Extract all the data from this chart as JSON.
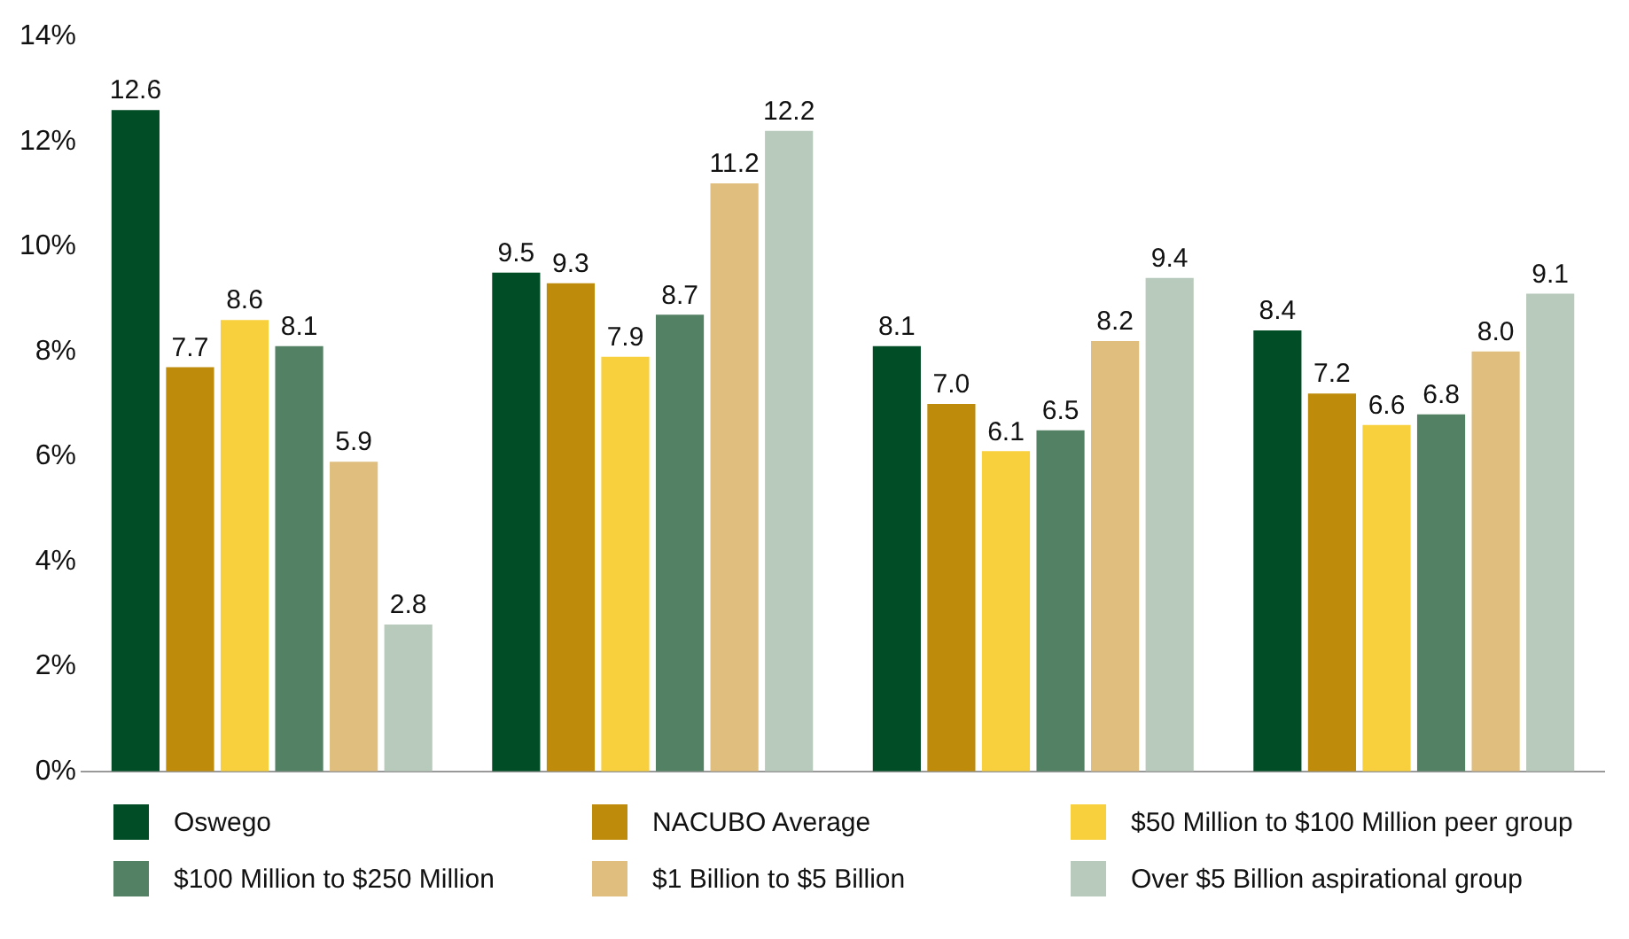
{
  "chart_data": {
    "type": "bar",
    "categories": [
      null,
      null,
      null,
      null
    ],
    "series": [
      {
        "name": "Oswego",
        "color": "#004d26",
        "values": [
          12.6,
          9.5,
          8.1,
          8.4
        ],
        "value_labels": [
          "12.6",
          "9.5",
          "8.1",
          "8.4"
        ]
      },
      {
        "name": "NACUBO Average",
        "color": "#be8b0a",
        "values": [
          7.7,
          9.3,
          7.0,
          7.2
        ],
        "value_labels": [
          "7.7",
          "9.3",
          "7.0",
          "7.2"
        ]
      },
      {
        "name": "$50 Million to $100 Million peer group",
        "color": "#f8cf3c",
        "values": [
          8.6,
          7.9,
          6.1,
          6.6
        ],
        "value_labels": [
          "8.6",
          "7.9",
          "6.1",
          "6.6"
        ]
      },
      {
        "name": "$100 Million to $250 Million",
        "color": "#538163",
        "values": [
          8.1,
          8.7,
          6.5,
          6.8
        ],
        "value_labels": [
          "8.1",
          "8.7",
          "6.5",
          "6.8"
        ]
      },
      {
        "name": "$1 Billion to $5 Billion",
        "color": "#dfbe7e",
        "values": [
          5.9,
          11.2,
          8.2,
          8.0
        ],
        "value_labels": [
          "5.9",
          "11.2",
          "8.2",
          "8.0"
        ]
      },
      {
        "name": "Over $5 Billion aspirational group",
        "color": "#b8cabb",
        "values": [
          2.8,
          12.2,
          9.4,
          9.1
        ],
        "value_labels": [
          "2.8",
          "12.2",
          "9.4",
          "9.1"
        ]
      }
    ],
    "ylim": [
      0,
      14
    ],
    "yticks": [
      {
        "value": 0,
        "label": "0%"
      },
      {
        "value": 2,
        "label": "2%"
      },
      {
        "value": 4,
        "label": "4%"
      },
      {
        "value": 6,
        "label": "6%"
      },
      {
        "value": 8,
        "label": "8%"
      },
      {
        "value": 10,
        "label": "10%"
      },
      {
        "value": 12,
        "label": "12%"
      },
      {
        "value": 14,
        "label": "14%"
      }
    ],
    "grid": false,
    "legend": "bottom"
  }
}
